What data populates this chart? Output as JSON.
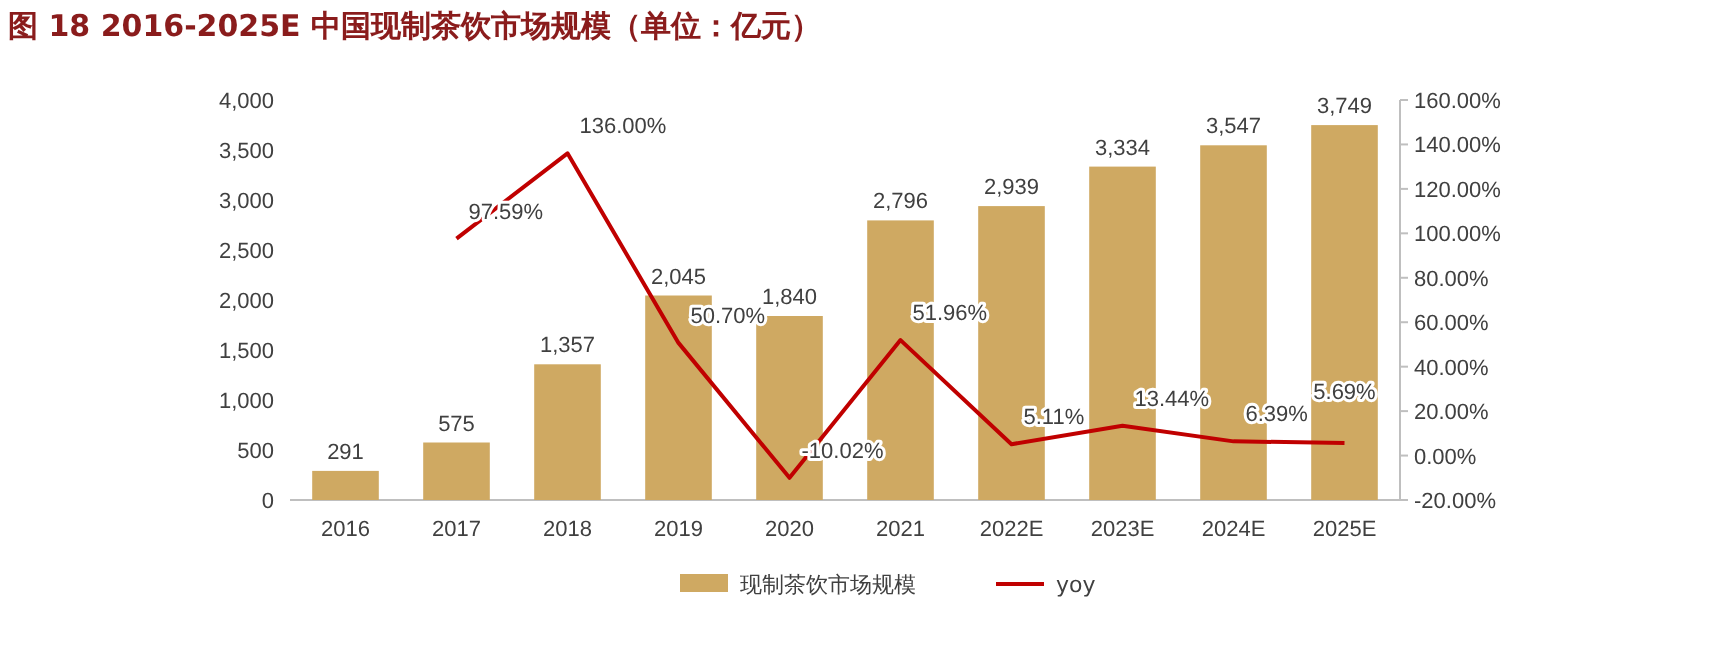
{
  "chart_data": {
    "type": "bar",
    "title": "图 18 2016-2025E 中国现制茶饮市场规模（单位：亿元）",
    "categories": [
      "2016",
      "2017",
      "2018",
      "2019",
      "2020",
      "2021",
      "2022E",
      "2023E",
      "2024E",
      "2025E"
    ],
    "series": [
      {
        "name": "现制茶饮市场规模",
        "color": "#cfa962",
        "values": [
          291,
          575,
          1357,
          2045,
          1840,
          2796,
          2939,
          3334,
          3547,
          3749
        ],
        "value_labels": [
          "291",
          "575",
          "1,357",
          "2,045",
          "1,840",
          "2,796",
          "2,939",
          "3,334",
          "3,547",
          "3,749"
        ]
      },
      {
        "name": "yoy",
        "type": "line",
        "axis": "y2",
        "color": "#c00000",
        "values": [
          null,
          97.59,
          136.0,
          50.7,
          -10.02,
          51.96,
          5.11,
          13.44,
          6.39,
          5.69
        ],
        "value_labels": [
          null,
          "97.59%",
          "136.00%",
          "50.70%",
          "-10.02%",
          "51.96%",
          "5.11%",
          "13.44%",
          "6.39%",
          "5.69%"
        ]
      }
    ],
    "ylim": [
      0,
      4000
    ],
    "yticks": [
      {
        "value": 0,
        "label": "0"
      },
      {
        "value": 500,
        "label": "500"
      },
      {
        "value": 1000,
        "label": "1,000"
      },
      {
        "value": 1500,
        "label": "1,500"
      },
      {
        "value": 2000,
        "label": "2,000"
      },
      {
        "value": 2500,
        "label": "2,500"
      },
      {
        "value": 3000,
        "label": "3,000"
      },
      {
        "value": 3500,
        "label": "3,500"
      },
      {
        "value": 4000,
        "label": "4,000"
      }
    ],
    "y2lim": [
      -20,
      160
    ],
    "y2ticks": [
      {
        "value": -20,
        "label": "-20.00%"
      },
      {
        "value": 0,
        "label": "0.00%"
      },
      {
        "value": 20,
        "label": "20.00%"
      },
      {
        "value": 40,
        "label": "40.00%"
      },
      {
        "value": 60,
        "label": "60.00%"
      },
      {
        "value": 80,
        "label": "80.00%"
      },
      {
        "value": 100,
        "label": "100.00%"
      },
      {
        "value": 120,
        "label": "120.00%"
      },
      {
        "value": 140,
        "label": "140.00%"
      },
      {
        "value": 160,
        "label": "160.00%"
      }
    ],
    "legend": "bottom",
    "grid": false
  }
}
